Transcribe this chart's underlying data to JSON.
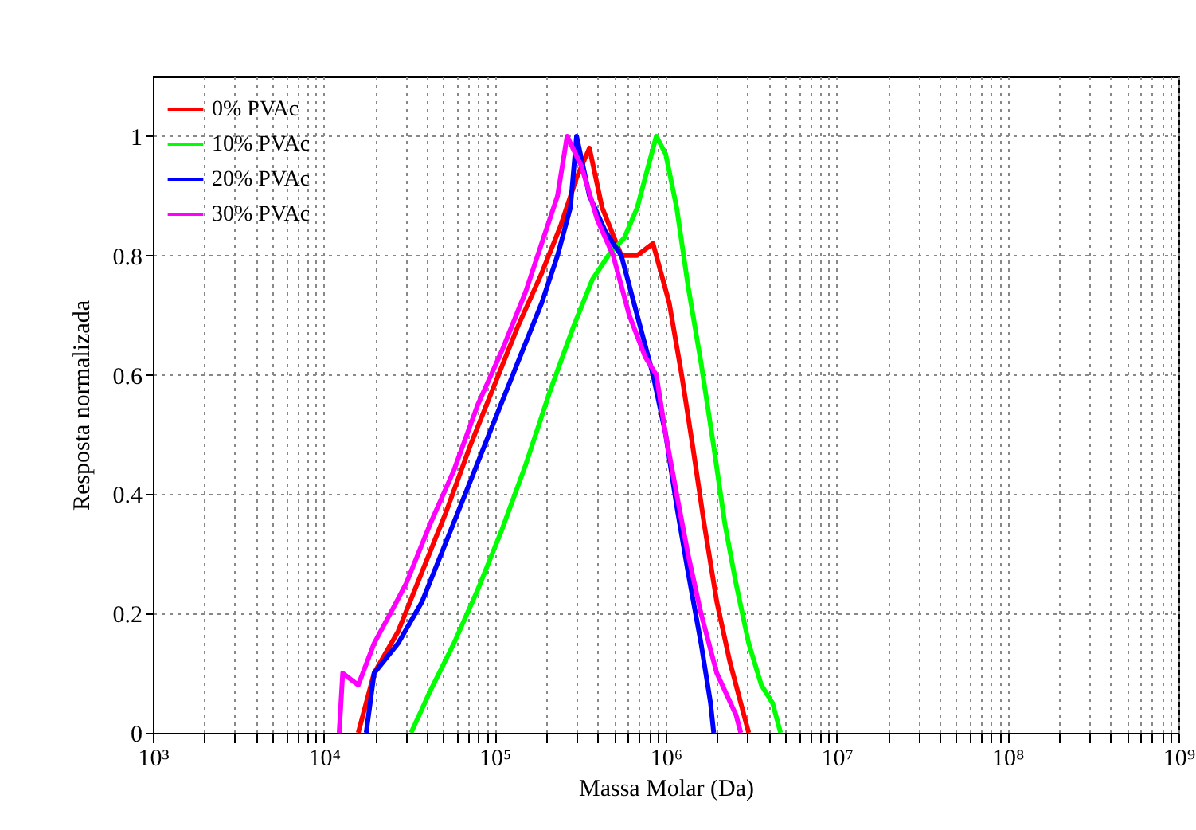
{
  "chart_data": {
    "type": "line",
    "xlabel": "Massa Molar (Da)",
    "ylabel": "Resposta normalizada",
    "log": "x",
    "grid": true,
    "legend": "top left",
    "line_style": "solid",
    "marker": "none",
    "xlim": [
      1000,
      1000000000
    ],
    "ylim": [
      0,
      1.1
    ],
    "xticks": [
      {
        "value": 1000,
        "label": "10³"
      },
      {
        "value": 2000,
        "label": null
      },
      {
        "value": 3000,
        "label": null
      },
      {
        "value": 4000,
        "label": null
      },
      {
        "value": 5000,
        "label": null
      },
      {
        "value": 6000,
        "label": null
      },
      {
        "value": 7000,
        "label": null
      },
      {
        "value": 8000,
        "label": null
      },
      {
        "value": 9000,
        "label": null
      },
      {
        "value": 10000,
        "label": "10⁴"
      },
      {
        "value": 20000,
        "label": null
      },
      {
        "value": 30000,
        "label": null
      },
      {
        "value": 40000,
        "label": null
      },
      {
        "value": 50000,
        "label": null
      },
      {
        "value": 60000,
        "label": null
      },
      {
        "value": 70000,
        "label": null
      },
      {
        "value": 80000,
        "label": null
      },
      {
        "value": 90000,
        "label": null
      },
      {
        "value": 100000,
        "label": "10⁵"
      },
      {
        "value": 200000,
        "label": null
      },
      {
        "value": 300000,
        "label": null
      },
      {
        "value": 400000,
        "label": null
      },
      {
        "value": 500000,
        "label": null
      },
      {
        "value": 600000,
        "label": null
      },
      {
        "value": 700000,
        "label": null
      },
      {
        "value": 800000,
        "label": null
      },
      {
        "value": 900000,
        "label": null
      },
      {
        "value": 1000000,
        "label": "10⁶"
      },
      {
        "value": 2000000,
        "label": null
      },
      {
        "value": 3000000,
        "label": null
      },
      {
        "value": 4000000,
        "label": null
      },
      {
        "value": 5000000,
        "label": null
      },
      {
        "value": 6000000,
        "label": null
      },
      {
        "value": 7000000,
        "label": null
      },
      {
        "value": 8000000,
        "label": null
      },
      {
        "value": 9000000,
        "label": null
      },
      {
        "value": 10000000,
        "label": "10⁷"
      },
      {
        "value": 20000000,
        "label": null
      },
      {
        "value": 30000000,
        "label": null
      },
      {
        "value": 40000000,
        "label": null
      },
      {
        "value": 50000000,
        "label": null
      },
      {
        "value": 60000000,
        "label": null
      },
      {
        "value": 70000000,
        "label": null
      },
      {
        "value": 80000000,
        "label": null
      },
      {
        "value": 90000000,
        "label": null
      },
      {
        "value": 100000000,
        "label": "10⁸"
      },
      {
        "value": 200000000,
        "label": null
      },
      {
        "value": 300000000,
        "label": null
      },
      {
        "value": 400000000,
        "label": null
      },
      {
        "value": 500000000,
        "label": null
      },
      {
        "value": 600000000,
        "label": null
      },
      {
        "value": 700000000,
        "label": null
      },
      {
        "value": 800000000,
        "label": null
      },
      {
        "value": 900000000,
        "label": null
      },
      {
        "value": 1000000000,
        "label": "10⁹"
      }
    ],
    "yticks": [
      0,
      0.2,
      0.4,
      0.6,
      0.8,
      1
    ],
    "series": [
      {
        "name": "0% PVAc",
        "color": "#ff0000",
        "x": [
          15900,
          19700,
          27200,
          37600,
          51900,
          71600,
          98600,
          136000,
          188000,
          243000,
          301000,
          358000,
          425000,
          550000,
          681000,
          843000,
          1050000,
          1240000,
          1440000,
          1680000,
          1990000,
          2370000,
          2750000,
          3060000
        ],
        "values": [
          0,
          0.1,
          0.17,
          0.27,
          0.37,
          0.48,
          0.58,
          0.68,
          0.77,
          0.85,
          0.93,
          0.98,
          0.88,
          0.8,
          0.8,
          0.82,
          0.72,
          0.6,
          0.48,
          0.35,
          0.22,
          0.12,
          0.05,
          0
        ]
      },
      {
        "name": "10% PVAc",
        "color": "#00ff00",
        "x": [
          32400,
          41900,
          57700,
          79600,
          110000,
          152000,
          209000,
          288000,
          373000,
          462000,
          574000,
          681000,
          809000,
          881000,
          1000000,
          1160000,
          1350000,
          1610000,
          1910000,
          2220000,
          2580000,
          3060000,
          3630000,
          4220000,
          4700000
        ],
        "values": [
          0,
          0.07,
          0.15,
          0.24,
          0.34,
          0.45,
          0.57,
          0.68,
          0.76,
          0.8,
          0.83,
          0.88,
          0.96,
          1,
          0.97,
          0.88,
          0.75,
          0.62,
          0.48,
          0.35,
          0.25,
          0.15,
          0.08,
          0.05,
          0
        ]
      },
      {
        "name": "20% PVAc",
        "color": "#0000ff",
        "x": [
          17700,
          19700,
          27200,
          37600,
          51900,
          71600,
          98600,
          136000,
          188000,
          233000,
          277000,
          301000,
          358000,
          444000,
          550000,
          681000,
          843000,
          1000000,
          1160000,
          1350000,
          1610000,
          1830000,
          1910000
        ],
        "values": [
          0,
          0.1,
          0.15,
          0.22,
          0.32,
          0.42,
          0.52,
          0.62,
          0.72,
          0.8,
          0.88,
          1,
          0.9,
          0.84,
          0.8,
          0.7,
          0.6,
          0.5,
          0.38,
          0.27,
          0.15,
          0.05,
          0
        ]
      },
      {
        "name": "30% PVAc",
        "color": "#ff00ff",
        "x": [
          12300,
          12900,
          15900,
          19700,
          24500,
          30300,
          41900,
          57700,
          79600,
          110000,
          152000,
          188000,
          233000,
          265000,
          321000,
          398000,
          493000,
          612000,
          759000,
          881000,
          1000000,
          1160000,
          1350000,
          1610000,
          1990000,
          2580000,
          2750000
        ],
        "values": [
          0,
          0.1,
          0.08,
          0.15,
          0.2,
          0.25,
          0.35,
          0.44,
          0.55,
          0.64,
          0.74,
          0.82,
          0.9,
          1,
          0.95,
          0.86,
          0.8,
          0.7,
          0.63,
          0.6,
          0.5,
          0.4,
          0.3,
          0.2,
          0.1,
          0.03,
          0
        ]
      }
    ]
  }
}
